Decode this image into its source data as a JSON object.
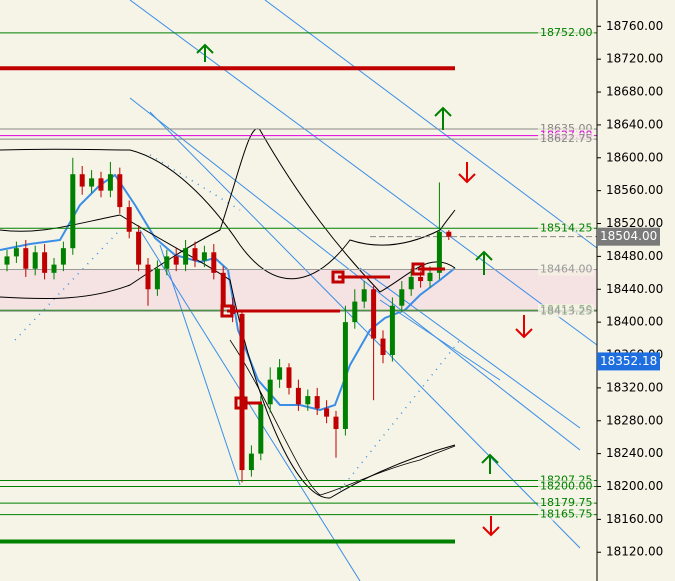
{
  "chart_data": {
    "type": "candlestick",
    "ylim": [
      18085,
      18792
    ],
    "yticks": [
      {
        "value": 18760,
        "label": "18760.00"
      },
      {
        "value": 18720,
        "label": "18720.00"
      },
      {
        "value": 18680,
        "label": "18680.00"
      },
      {
        "value": 18640,
        "label": "18640.00"
      },
      {
        "value": 18600,
        "label": "18600.00"
      },
      {
        "value": 18560,
        "label": "18560.00"
      },
      {
        "value": 18520,
        "label": "18520.00"
      },
      {
        "value": 18480,
        "label": "18480.00"
      },
      {
        "value": 18440,
        "label": "18440.00"
      },
      {
        "value": 18400,
        "label": "18400.00"
      },
      {
        "value": 18360,
        "label": "18360.00"
      },
      {
        "value": 18320,
        "label": "18320.00"
      },
      {
        "value": 18280,
        "label": "18280.00"
      },
      {
        "value": 18240,
        "label": "18240.00"
      },
      {
        "value": 18200,
        "label": "18200.00"
      },
      {
        "value": 18160,
        "label": "18160.00"
      },
      {
        "value": 18120,
        "label": "18120.00"
      }
    ],
    "up_color": "#008000",
    "down_color": "#c00000",
    "open": [
      18470,
      18480,
      18490,
      18465,
      18485,
      18460,
      18470,
      18490,
      18580,
      18565,
      18575,
      18560,
      18580,
      18540,
      18510,
      18470,
      18440,
      18465,
      18480,
      18470,
      18490,
      18475,
      18485,
      18460,
      18420,
      18410,
      18220,
      18240,
      18300,
      18330,
      18345,
      18320,
      18300,
      18310,
      18295,
      18285,
      18270,
      18400,
      18425,
      18440,
      18380,
      18360,
      18420,
      18440,
      18455,
      18450,
      18460,
      18510
    ],
    "high": [
      18488,
      18498,
      18500,
      18493,
      18495,
      18478,
      18498,
      18600,
      18590,
      18585,
      18583,
      18595,
      18588,
      18548,
      18518,
      18478,
      18475,
      18488,
      18490,
      18500,
      18498,
      18493,
      18495,
      18468,
      18430,
      18415,
      18250,
      18310,
      18345,
      18355,
      18350,
      18330,
      18318,
      18320,
      18305,
      18292,
      18420,
      18440,
      18450,
      18445,
      18390,
      18430,
      18450,
      18465,
      18462,
      18468,
      18570,
      18512
    ],
    "low": [
      18462,
      18472,
      18455,
      18457,
      18452,
      18452,
      18462,
      18482,
      18555,
      18557,
      18552,
      18552,
      18532,
      18502,
      18462,
      18420,
      18432,
      18457,
      18462,
      18462,
      18467,
      18467,
      18452,
      18412,
      18400,
      18205,
      18212,
      18232,
      18290,
      18320,
      18312,
      18292,
      18292,
      18287,
      18277,
      18235,
      18262,
      18392,
      18417,
      18305,
      18350,
      18352,
      18412,
      18432,
      18442,
      18442,
      18452,
      18500
    ],
    "close": [
      18480,
      18490,
      18465,
      18485,
      18460,
      18470,
      18490,
      18580,
      18565,
      18575,
      18560,
      18580,
      18540,
      18510,
      18470,
      18440,
      18465,
      18480,
      18470,
      18490,
      18475,
      18485,
      18460,
      18420,
      18410,
      18220,
      18240,
      18300,
      18330,
      18345,
      18320,
      18300,
      18310,
      18295,
      18285,
      18270,
      18400,
      18425,
      18440,
      18380,
      18360,
      18420,
      18440,
      18455,
      18450,
      18460,
      18510,
      18504
    ],
    "levels": [
      {
        "value": 18752,
        "label": "18752.00",
        "color": "#008000"
      },
      {
        "value": 18635,
        "label": "18635.00",
        "color": "#888888"
      },
      {
        "value": 18627,
        "label": "18627.00",
        "color": "#e000e0"
      },
      {
        "value": 18622.75,
        "label": "18622.75",
        "color": "#888888"
      },
      {
        "value": 18514.25,
        "label": "18514.25",
        "color": "#008000"
      },
      {
        "value": 18464,
        "label": "18464.00",
        "color": "#999999"
      },
      {
        "value": 18414.5,
        "label": "18414.50",
        "color": "#008000"
      },
      {
        "value": 18413.25,
        "label": "18413.25",
        "color": "#999999"
      },
      {
        "value": 18207.25,
        "label": "18207.25",
        "color": "#008000"
      },
      {
        "value": 18200,
        "label": "18200.00",
        "color": "#008000"
      },
      {
        "value": 18179.75,
        "label": "18179.75",
        "color": "#008000"
      },
      {
        "value": 18165.75,
        "label": "18165.75",
        "color": "#008000"
      }
    ],
    "thick_lines": [
      {
        "value": 18709,
        "color": "#c00000"
      },
      {
        "value": 18133,
        "color": "#008000"
      }
    ],
    "price_tags": [
      {
        "value": 18504,
        "label": "18504.00",
        "color": "#7a7a7a"
      },
      {
        "value": 18352.18,
        "label": "18352.18",
        "color": "#1e6ee0"
      }
    ]
  }
}
